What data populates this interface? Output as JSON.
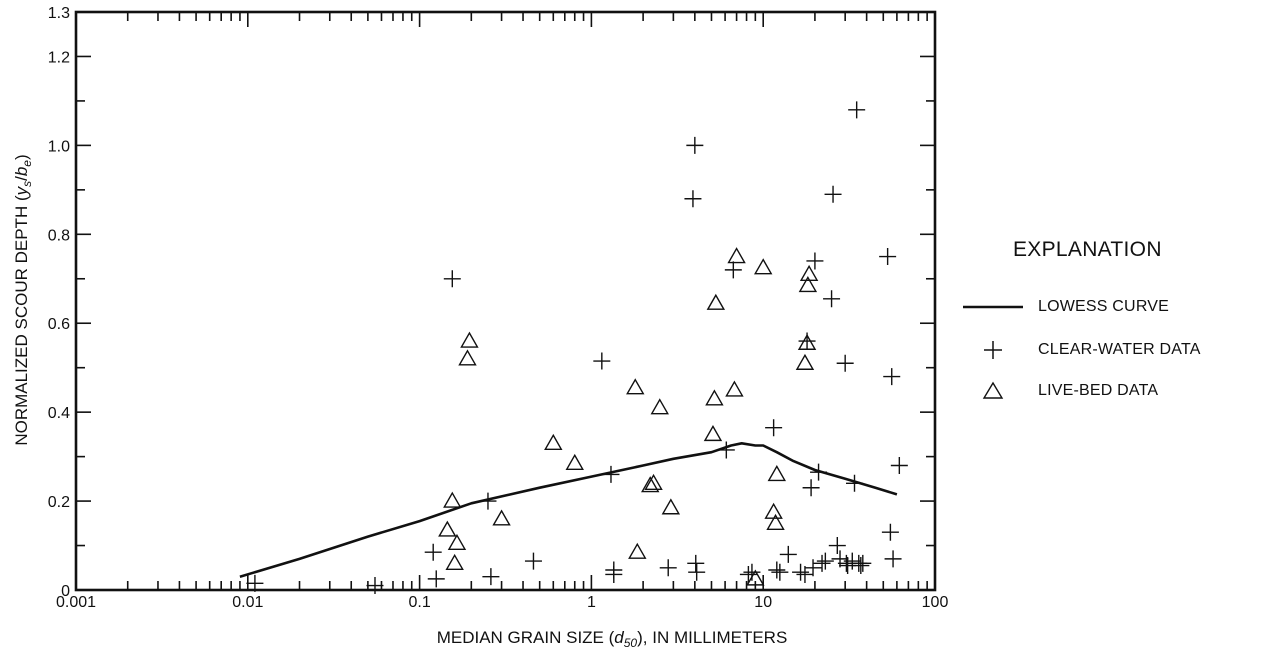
{
  "chart_data": {
    "type": "scatter",
    "xlabel": "MEDIAN GRAIN SIZE (d50), IN MILLIMETERS",
    "xlabel_parts": {
      "pre": "MEDIAN GRAIN SIZE (",
      "var": "d",
      "sub": "50",
      "post": "), IN MILLIMETERS"
    },
    "ylabel": "NORMALIZED SCOUR DEPTH (ys/be)",
    "ylabel_parts": {
      "pre": "NORMALIZED SCOUR DEPTH (",
      "v1": "y",
      "s1": "s",
      "slash": "/",
      "v2": "b",
      "s2": "e",
      "post": ")"
    },
    "x_scale": "log",
    "xlim": [
      0.001,
      100
    ],
    "ylim": [
      0,
      1.3
    ],
    "x_ticks": [
      0.001,
      0.01,
      0.1,
      1,
      10,
      100
    ],
    "x_tick_labels": [
      "0.001",
      "0.01",
      "0.1",
      "1",
      "10",
      "100"
    ],
    "y_ticks": [
      0,
      0.2,
      0.4,
      0.6,
      0.8,
      1.0,
      1.2
    ],
    "y_tick_labels": [
      "0",
      "0.2",
      "0.4",
      "0.6",
      "0.8",
      "1.0",
      "1.2"
    ],
    "y_top_label": "1.3",
    "grid": false,
    "legend": {
      "title": "EXPLANATION",
      "placement": "right",
      "lowess": "LOWESS CURVE",
      "clear": "CLEAR-WATER DATA",
      "live": "LIVE-BED DATA"
    },
    "series": [
      {
        "name": "LOWESS CURVE",
        "kind": "line",
        "x": [
          0.009,
          0.02,
          0.05,
          0.1,
          0.2,
          0.5,
          1,
          2,
          3,
          5,
          6.5,
          7.5,
          9,
          10,
          12,
          15,
          20,
          30,
          45,
          60
        ],
        "y": [
          0.03,
          0.07,
          0.12,
          0.155,
          0.195,
          0.23,
          0.255,
          0.28,
          0.295,
          0.31,
          0.325,
          0.33,
          0.325,
          0.325,
          0.31,
          0.29,
          0.27,
          0.25,
          0.23,
          0.215
        ]
      },
      {
        "name": "CLEAR-WATER DATA",
        "kind": "plus",
        "x": [
          0.011,
          0.055,
          0.12,
          0.125,
          0.155,
          0.25,
          0.26,
          0.46,
          1.15,
          1.3,
          1.35,
          1.35,
          2.8,
          3.9,
          4.0,
          4.05,
          4.1,
          6.1,
          6.7,
          8.2,
          8.6,
          11.5,
          12.0,
          12.5,
          14.0,
          16.5,
          17.5,
          18.0,
          19.0,
          19.5,
          20.0,
          21.0,
          22.0,
          23.0,
          25.0,
          25.5,
          27.0,
          28.0,
          30.0,
          30.5,
          31.0,
          33.0,
          34.0,
          35.0,
          36.0,
          37.0,
          38.0,
          53.0,
          55.0,
          56.0,
          57.0,
          62.0
        ],
        "y": [
          0.015,
          0.01,
          0.085,
          0.025,
          0.7,
          0.2,
          0.03,
          0.065,
          0.515,
          0.26,
          0.045,
          0.035,
          0.05,
          0.88,
          1.0,
          0.06,
          0.04,
          0.315,
          0.72,
          0.035,
          0.04,
          0.365,
          0.045,
          0.04,
          0.08,
          0.04,
          0.035,
          0.56,
          0.23,
          0.05,
          0.74,
          0.265,
          0.06,
          0.065,
          0.655,
          0.89,
          0.1,
          0.07,
          0.51,
          0.06,
          0.055,
          0.065,
          0.24,
          1.08,
          0.06,
          0.055,
          0.06,
          0.75,
          0.13,
          0.48,
          0.07,
          0.28
        ]
      },
      {
        "name": "LIVE-BED DATA",
        "kind": "triangle",
        "x": [
          0.145,
          0.155,
          0.16,
          0.165,
          0.19,
          0.195,
          0.3,
          0.6,
          0.8,
          1.8,
          1.85,
          2.2,
          2.3,
          2.5,
          2.9,
          5.1,
          5.2,
          5.3,
          6.8,
          7.0,
          9.0,
          10.0,
          11.5,
          11.8,
          12.0,
          17.5,
          18.0,
          18.2,
          18.5
        ],
        "y": [
          0.135,
          0.2,
          0.06,
          0.105,
          0.52,
          0.56,
          0.16,
          0.33,
          0.285,
          0.455,
          0.085,
          0.235,
          0.24,
          0.41,
          0.185,
          0.35,
          0.43,
          0.645,
          0.45,
          0.75,
          0.025,
          0.725,
          0.175,
          0.15,
          0.26,
          0.51,
          0.555,
          0.685,
          0.71
        ]
      }
    ]
  }
}
